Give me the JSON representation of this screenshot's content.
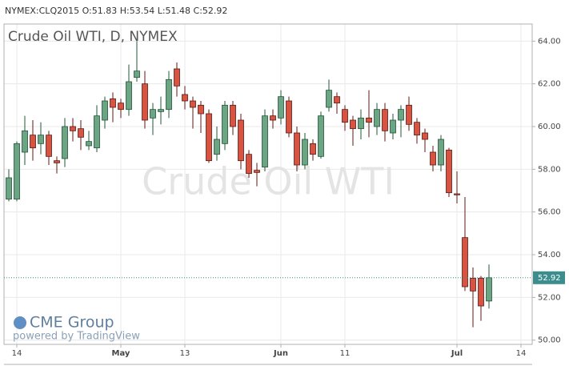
{
  "header": "NYMEX:CLQ2015 O:51.83 H:53.54 L:51.48 C:52.92",
  "chart_data": {
    "type": "candlestick",
    "title": "Crude Oil WTI, D, NYMEX",
    "watermark": "Crude Oil WTI",
    "x": [
      0,
      1,
      2,
      3,
      4,
      5,
      6,
      7,
      8,
      9,
      10,
      11,
      12,
      13,
      14,
      15,
      16,
      17,
      18,
      19,
      20,
      21,
      22,
      23,
      24,
      25,
      26,
      27,
      28,
      29,
      30,
      31,
      32,
      33,
      34,
      35,
      36,
      37,
      38,
      39,
      40,
      41,
      42,
      43,
      44,
      45,
      46,
      47,
      48,
      49,
      50,
      51,
      52,
      53,
      54,
      55,
      56,
      57,
      58,
      59,
      60
    ],
    "open": [
      56.6,
      56.6,
      58.8,
      59.6,
      59.2,
      59.6,
      58.4,
      58.5,
      60.0,
      59.9,
      59.1,
      59.0,
      60.3,
      61.3,
      61.1,
      60.8,
      62.3,
      62.0,
      60.4,
      60.7,
      60.8,
      62.7,
      61.5,
      61.2,
      61.0,
      60.6,
      58.7,
      59.2,
      61.0,
      60.3,
      58.7,
      57.95,
      58.1,
      60.5,
      60.4,
      61.2,
      59.7,
      58.2,
      59.2,
      58.6,
      60.9,
      61.4,
      60.8,
      60.3,
      59.9,
      60.4,
      60.0,
      60.8,
      59.7,
      60.3,
      61.0,
      60.2,
      59.7,
      58.8,
      58.2,
      58.9,
      56.85,
      54.8,
      52.9,
      52.9,
      51.83
    ],
    "high": [
      58.0,
      59.3,
      60.5,
      60.3,
      60.2,
      59.8,
      58.6,
      60.4,
      60.4,
      60.3,
      59.8,
      61.0,
      61.4,
      61.6,
      61.3,
      62.9,
      64.0,
      62.6,
      61.1,
      61.4,
      62.6,
      63.0,
      61.9,
      61.4,
      61.2,
      60.8,
      60.0,
      61.2,
      61.2,
      60.6,
      58.9,
      58.3,
      60.8,
      60.8,
      61.7,
      61.4,
      60.0,
      59.7,
      59.4,
      60.7,
      62.2,
      61.6,
      61.0,
      60.5,
      60.8,
      61.7,
      61.1,
      61.1,
      60.6,
      61.0,
      61.4,
      60.4,
      59.9,
      59.1,
      59.6,
      59.0,
      57.9,
      56.7,
      53.4,
      53.0,
      53.54
    ],
    "low": [
      56.5,
      56.5,
      58.2,
      58.4,
      58.7,
      58.2,
      57.8,
      58.1,
      59.3,
      58.9,
      58.9,
      58.8,
      59.9,
      60.2,
      60.4,
      60.5,
      62.1,
      59.9,
      59.6,
      60.1,
      60.4,
      61.4,
      60.8,
      59.9,
      59.7,
      58.3,
      58.4,
      58.9,
      59.6,
      58.0,
      57.6,
      57.2,
      57.9,
      59.9,
      60.1,
      59.5,
      57.9,
      58.0,
      58.4,
      58.5,
      60.7,
      60.6,
      59.8,
      59.1,
      59.4,
      59.5,
      59.6,
      59.3,
      59.4,
      59.5,
      59.8,
      59.2,
      58.8,
      57.9,
      57.9,
      56.7,
      56.4,
      52.3,
      50.6,
      50.9,
      51.48
    ],
    "close": [
      57.6,
      59.2,
      59.8,
      59.0,
      59.6,
      58.6,
      58.3,
      60.0,
      59.8,
      59.5,
      59.3,
      60.5,
      61.2,
      60.9,
      60.8,
      62.1,
      62.6,
      60.3,
      60.8,
      60.8,
      62.2,
      61.9,
      61.2,
      60.9,
      60.6,
      58.4,
      59.4,
      61.0,
      60.0,
      58.4,
      57.8,
      57.85,
      60.5,
      60.3,
      61.4,
      59.7,
      58.2,
      59.4,
      58.7,
      60.5,
      61.7,
      61.1,
      60.2,
      59.9,
      60.4,
      60.2,
      60.8,
      59.8,
      60.3,
      60.8,
      60.1,
      59.6,
      59.4,
      58.2,
      59.4,
      56.9,
      56.8,
      52.5,
      52.3,
      51.6,
      52.92
    ],
    "up_color": "#6ba583",
    "down_color": "#d75442",
    "up_border": "#225437",
    "down_border": "#5b1a13",
    "last_price": 52.92,
    "last_color": "#3c8d8d",
    "xlim": [
      -0.6,
      65.4
    ],
    "xticks": [
      {
        "value": 1,
        "label": "14"
      },
      {
        "value": 14,
        "label": "May"
      },
      {
        "value": 22,
        "label": "13"
      },
      {
        "value": 34,
        "label": "Jun"
      },
      {
        "value": 42,
        "label": "11"
      },
      {
        "value": 56,
        "label": "Jul"
      },
      {
        "value": 64,
        "label": "14"
      }
    ],
    "ylim": [
      49.8,
      64.8
    ],
    "yticks": [
      {
        "value": 50,
        "label": "50.00"
      },
      {
        "value": 52,
        "label": "52.00"
      },
      {
        "value": 54,
        "label": "54.00"
      },
      {
        "value": 56,
        "label": "56.00"
      },
      {
        "value": 58,
        "label": "58.00"
      },
      {
        "value": 60,
        "label": "60.00"
      },
      {
        "value": 62,
        "label": "62.00"
      },
      {
        "value": 64,
        "label": "64.00"
      }
    ],
    "grid": true
  },
  "branding": {
    "logo": "CME Group",
    "powered": "powered by TradingView"
  }
}
